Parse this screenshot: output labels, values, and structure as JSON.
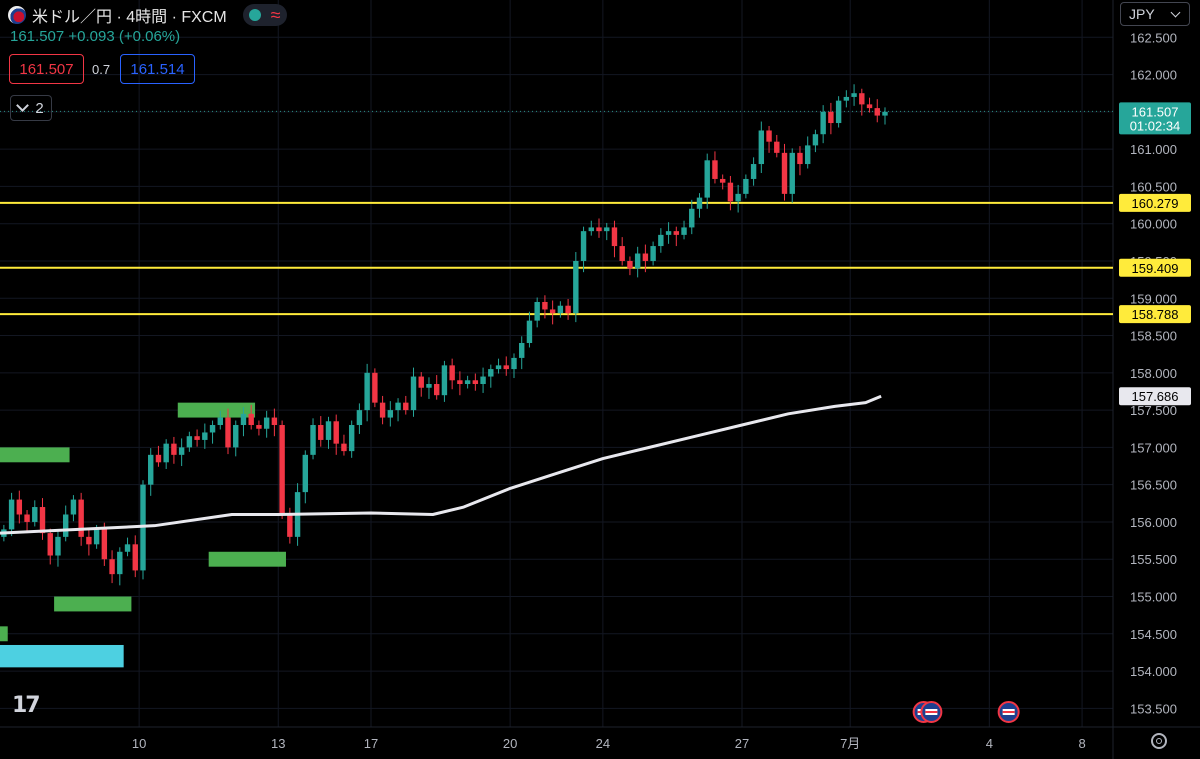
{
  "header": {
    "title": "米ドル／円 · 4時間 · FXCM",
    "change": "161.507  +0.093 (+0.06%)",
    "sell_price": "161.507",
    "spread": "0.7",
    "buy_price": "161.514",
    "indicator_count": "2",
    "currency": "JPY",
    "colors": {
      "up": "#26a69a",
      "down": "#f23645",
      "accent": "#2962ff"
    }
  },
  "chart_data": {
    "type": "candlestick",
    "symbol": "米ドル／円",
    "interval": "4時間",
    "source": "FXCM",
    "y_range": [
      153.25,
      163.0
    ],
    "y_ticks": [
      "162.500",
      "162.000",
      "161.500",
      "161.000",
      "160.500",
      "160.000",
      "159.500",
      "159.000",
      "158.500",
      "158.000",
      "157.500",
      "157.000",
      "156.500",
      "156.000",
      "155.500",
      "155.000",
      "154.500",
      "154.000",
      "153.500"
    ],
    "x_ticks": [
      {
        "label": "10",
        "t": 18
      },
      {
        "label": "13",
        "t": 36
      },
      {
        "label": "17",
        "t": 48
      },
      {
        "label": "20",
        "t": 66
      },
      {
        "label": "24",
        "t": 78
      },
      {
        "label": "27",
        "t": 96
      },
      {
        "label": "7月",
        "t": 110
      },
      {
        "label": "4",
        "t": 128
      },
      {
        "label": "8",
        "t": 140
      }
    ],
    "closes": [
      155.9,
      156.3,
      156.1,
      156.0,
      156.2,
      155.85,
      155.55,
      155.8,
      156.1,
      156.3,
      155.8,
      155.7,
      155.9,
      155.5,
      155.3,
      155.6,
      155.7,
      155.35,
      156.5,
      156.9,
      156.8,
      157.05,
      156.9,
      157.0,
      157.15,
      157.1,
      157.2,
      157.3,
      157.4,
      157.0,
      157.3,
      157.45,
      157.3,
      157.25,
      157.4,
      157.3,
      156.1,
      155.8,
      156.4,
      156.9,
      157.3,
      157.1,
      157.35,
      157.05,
      156.95,
      157.3,
      157.5,
      158.0,
      157.6,
      157.4,
      157.5,
      157.6,
      157.5,
      157.95,
      157.8,
      157.85,
      157.7,
      158.1,
      157.9,
      157.85,
      157.9,
      157.85,
      157.95,
      158.05,
      158.1,
      158.05,
      158.2,
      158.4,
      158.7,
      158.95,
      158.85,
      158.8,
      158.9,
      158.8,
      159.5,
      159.9,
      159.95,
      159.9,
      159.95,
      159.7,
      159.5,
      159.4,
      159.6,
      159.5,
      159.7,
      159.85,
      159.9,
      159.85,
      159.95,
      160.2,
      160.35,
      160.85,
      160.6,
      160.55,
      160.3,
      160.4,
      160.6,
      160.8,
      161.25,
      161.1,
      160.95,
      160.4,
      160.95,
      160.8,
      161.05,
      161.2,
      161.5,
      161.35,
      161.65,
      161.7,
      161.75,
      161.6,
      161.55,
      161.45,
      161.5
    ],
    "ma_series": [
      {
        "t": 0,
        "v": 155.85
      },
      {
        "t": 20,
        "v": 155.95
      },
      {
        "t": 30,
        "v": 156.1
      },
      {
        "t": 36,
        "v": 156.1
      },
      {
        "t": 48,
        "v": 156.12
      },
      {
        "t": 56,
        "v": 156.1
      },
      {
        "t": 60,
        "v": 156.2
      },
      {
        "t": 66,
        "v": 156.45
      },
      {
        "t": 72,
        "v": 156.65
      },
      {
        "t": 78,
        "v": 156.85
      },
      {
        "t": 84,
        "v": 157.0
      },
      {
        "t": 90,
        "v": 157.15
      },
      {
        "t": 96,
        "v": 157.3
      },
      {
        "t": 102,
        "v": 157.45
      },
      {
        "t": 108,
        "v": 157.55
      },
      {
        "t": 112,
        "v": 157.6
      },
      {
        "t": 114,
        "v": 157.686
      }
    ],
    "current_price": {
      "value": 161.507,
      "label": "161.507",
      "countdown": "01:02:34"
    },
    "ma_label": "157.686",
    "horizontal_lines": [
      {
        "value": 160.279,
        "label": "160.279"
      },
      {
        "value": 159.409,
        "label": "159.409"
      },
      {
        "value": 158.788,
        "label": "158.788"
      }
    ],
    "zones": [
      {
        "t0": 23,
        "t1": 33,
        "y0": 157.4,
        "y1": 157.6,
        "color": "#4caf50"
      },
      {
        "t0": -1,
        "t1": 9,
        "y0": 156.8,
        "y1": 157.0,
        "color": "#4caf50"
      },
      {
        "t0": 27,
        "t1": 37,
        "y0": 155.4,
        "y1": 155.6,
        "color": "#4caf50"
      },
      {
        "t0": 7,
        "t1": 17,
        "y0": 154.8,
        "y1": 155.0,
        "color": "#4caf50"
      },
      {
        "t0": -1,
        "t1": 1,
        "y0": 154.4,
        "y1": 154.6,
        "color": "#4caf50"
      },
      {
        "t0": -1,
        "t1": 16,
        "y0": 154.05,
        "y1": 154.35,
        "color": "#4dd0e1"
      }
    ],
    "event_markers": [
      {
        "t": 119.5,
        "icon": "us-flag-icon"
      },
      {
        "t": 120.5,
        "icon": "us-flag-icon"
      },
      {
        "t": 130.5,
        "icon": "us-flag-icon"
      }
    ]
  }
}
